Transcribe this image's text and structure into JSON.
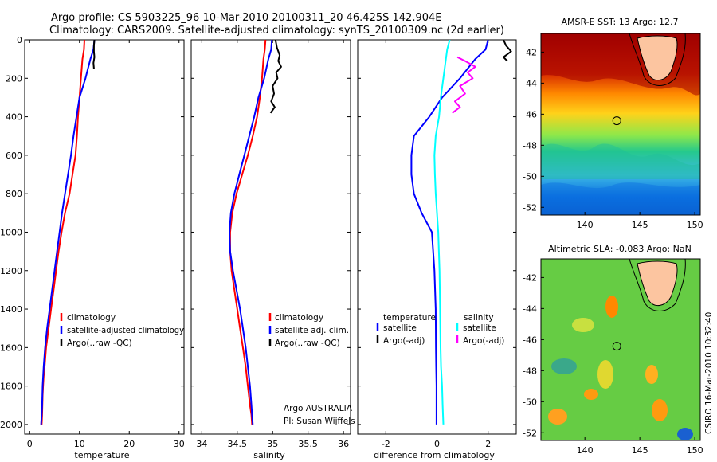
{
  "header": {
    "line1": "Argo profile: CS 5903225_96 10-Mar-2010 20100311_20 46.425S 142.904E",
    "line2": "Climatology: CARS2009. Satellite-adjusted climatology: synTS_20100309.nc (2d earlier)"
  },
  "side_stamp": "CSIRO 16-Mar-2010 10:32:40",
  "chart_data": [
    {
      "id": "temperature",
      "type": "line",
      "xlabel": "temperature",
      "ylabel": "",
      "xlim": [
        -1,
        31
      ],
      "ylim": [
        2050,
        0
      ],
      "xticks": [
        0,
        10,
        20,
        30
      ],
      "yticks": [
        0,
        200,
        400,
        600,
        800,
        1000,
        1200,
        1400,
        1600,
        1800,
        2000
      ],
      "legend": [
        "climatology",
        "satellite-adjusted climatology",
        "Argo(..raw -QC)"
      ],
      "legend_placement": "lower-right",
      "series": [
        {
          "name": "climatology",
          "color": "#ff0000",
          "x": [
            11.0,
            10.9,
            10.6,
            10.3,
            10.0,
            9.7,
            9.5,
            9.2,
            8.6,
            8.0,
            7.1,
            6.4,
            5.8,
            5.3,
            4.8,
            4.3,
            3.8,
            3.3,
            3.0,
            2.8,
            2.7,
            2.6,
            2.55,
            2.5,
            2.45,
            2.4
          ],
          "y": [
            0,
            50,
            100,
            200,
            300,
            400,
            500,
            600,
            700,
            800,
            900,
            1000,
            1100,
            1200,
            1300,
            1400,
            1500,
            1600,
            1700,
            1750,
            1800,
            1850,
            1900,
            1950,
            1980,
            2000
          ]
        },
        {
          "name": "satellite-adjusted climatology",
          "color": "#0000ff",
          "x": [
            13.0,
            12.8,
            12.2,
            11.2,
            10.0,
            9.4,
            8.8,
            8.3,
            7.7,
            7.1,
            6.5,
            6.0,
            5.5,
            5.0,
            4.5,
            4.0,
            3.5,
            3.1,
            2.8,
            2.6,
            2.5,
            2.4,
            2.3
          ],
          "y": [
            0,
            50,
            100,
            200,
            300,
            400,
            500,
            600,
            700,
            800,
            900,
            1000,
            1100,
            1200,
            1300,
            1400,
            1500,
            1600,
            1700,
            1800,
            1900,
            1950,
            2000
          ]
        },
        {
          "name": "Argo(..raw -QC)",
          "color": "#000000",
          "x": [
            13.0,
            12.9,
            12.9,
            13.0,
            12.8,
            12.9
          ],
          "y": [
            0,
            30,
            60,
            90,
            120,
            150
          ]
        }
      ]
    },
    {
      "id": "salinity",
      "type": "line",
      "xlabel": "salinity",
      "ylabel": "",
      "xlim": [
        33.85,
        36.1
      ],
      "ylim": [
        2050,
        0
      ],
      "xticks": [
        34,
        34.5,
        35,
        35.5,
        36
      ],
      "legend": [
        "climatology",
        "satellite adj. clim.",
        "Argo(..raw -QC)"
      ],
      "legend_placement": "lower-right",
      "annotation": [
        "Argo AUSTRALIA",
        "PI: Susan Wijffels"
      ],
      "series": [
        {
          "name": "climatology",
          "color": "#ff0000",
          "x": [
            34.9,
            34.89,
            34.87,
            34.85,
            34.82,
            34.78,
            34.72,
            34.65,
            34.57,
            34.49,
            34.43,
            34.4,
            34.4,
            34.42,
            34.46,
            34.5,
            34.54,
            34.58,
            34.62,
            34.65,
            34.68,
            34.7,
            34.71
          ],
          "y": [
            0,
            50,
            100,
            200,
            300,
            400,
            500,
            600,
            700,
            800,
            900,
            1000,
            1100,
            1200,
            1300,
            1400,
            1500,
            1600,
            1700,
            1800,
            1900,
            1950,
            2000
          ]
        },
        {
          "name": "satellite adj. clim.",
          "color": "#0000ff",
          "x": [
            34.99,
            34.98,
            34.94,
            34.88,
            34.8,
            34.74,
            34.67,
            34.6,
            34.53,
            34.46,
            34.41,
            34.39,
            34.4,
            34.44,
            34.49,
            34.54,
            34.58,
            34.62,
            34.65,
            34.68,
            34.7,
            34.71,
            34.72
          ],
          "y": [
            0,
            50,
            100,
            200,
            300,
            400,
            500,
            600,
            700,
            800,
            900,
            1000,
            1100,
            1200,
            1300,
            1400,
            1500,
            1600,
            1700,
            1800,
            1900,
            1950,
            2000
          ]
        },
        {
          "name": "Argo(..raw -QC)",
          "color": "#000000",
          "x": [
            35.04,
            35.06,
            35.1,
            35.08,
            35.12,
            35.05,
            35.07,
            35.0,
            35.02,
            34.98,
            35.03,
            34.97
          ],
          "y": [
            0,
            40,
            80,
            110,
            140,
            170,
            200,
            240,
            280,
            320,
            350,
            380
          ]
        }
      ]
    },
    {
      "id": "difference",
      "type": "line",
      "xlabel": "difference from climatology",
      "ylabel": "",
      "xlim": [
        -3.1,
        3.1
      ],
      "ylim": [
        2050,
        0
      ],
      "xticks": [
        -2,
        0,
        2
      ],
      "legend_groups": [
        {
          "title": "temperature",
          "items": [
            "satellite",
            "Argo(-adj)"
          ]
        },
        {
          "title": "salinity",
          "items": [
            "satellite",
            "Argo(-adj)"
          ]
        }
      ],
      "legend_placement": "lower-right",
      "series": [
        {
          "name": "temperature satellite",
          "color": "#0000ff",
          "x": [
            2.0,
            1.9,
            1.5,
            0.9,
            0.2,
            -0.3,
            -0.9,
            -1.0,
            -1.0,
            -0.9,
            -0.6,
            -0.2,
            -0.1,
            -0.05,
            -0.04,
            -0.03,
            -0.02,
            -0.02,
            -0.02
          ],
          "y": [
            0,
            50,
            100,
            200,
            300,
            400,
            500,
            600,
            700,
            800,
            900,
            1000,
            1200,
            1400,
            1600,
            1700,
            1800,
            1900,
            2000
          ]
        },
        {
          "name": "salinity satellite",
          "color": "#00ffff",
          "x": [
            0.5,
            0.4,
            0.35,
            0.25,
            0.15,
            0.08,
            -0.05,
            -0.1,
            -0.08,
            -0.05,
            0.0,
            0.05,
            0.1,
            0.12,
            0.14,
            0.16,
            0.2,
            0.22,
            0.25
          ],
          "y": [
            0,
            50,
            100,
            200,
            300,
            400,
            500,
            600,
            700,
            800,
            900,
            1000,
            1200,
            1400,
            1600,
            1700,
            1800,
            1900,
            2000
          ]
        },
        {
          "name": "temperature Argo(-adj)",
          "color": "#000000",
          "x": [
            2.6,
            2.7,
            2.9,
            2.6,
            2.75
          ],
          "y": [
            0,
            30,
            60,
            90,
            110
          ]
        },
        {
          "name": "salinity Argo(-adj)",
          "color": "#ff00ff",
          "x": [
            0.8,
            1.1,
            1.5,
            1.2,
            1.4,
            0.9,
            1.1,
            0.7,
            0.9,
            0.6
          ],
          "y": [
            90,
            110,
            140,
            170,
            200,
            240,
            280,
            320,
            350,
            380
          ]
        }
      ]
    },
    {
      "id": "sst-map",
      "type": "heatmap",
      "title": "AMSR-E SST: 13 Argo: 12.7",
      "xlim": [
        136,
        150.5
      ],
      "ylim": [
        -52.5,
        -40.8
      ],
      "xticks": [
        140,
        145,
        150
      ],
      "yticks": [
        -42,
        -44,
        -46,
        -48,
        -50,
        -52
      ],
      "marker": {
        "lon": 142.904,
        "lat": -46.425
      }
    },
    {
      "id": "sla-map",
      "type": "heatmap",
      "title": "Altimetric SLA: -0.083 Argo: NaN",
      "xlim": [
        136,
        150.5
      ],
      "ylim": [
        -52.5,
        -40.8
      ],
      "xticks": [
        140,
        145,
        150
      ],
      "yticks": [
        -42,
        -44,
        -46,
        -48,
        -50,
        -52
      ],
      "marker": {
        "lon": 142.904,
        "lat": -46.425
      }
    }
  ]
}
